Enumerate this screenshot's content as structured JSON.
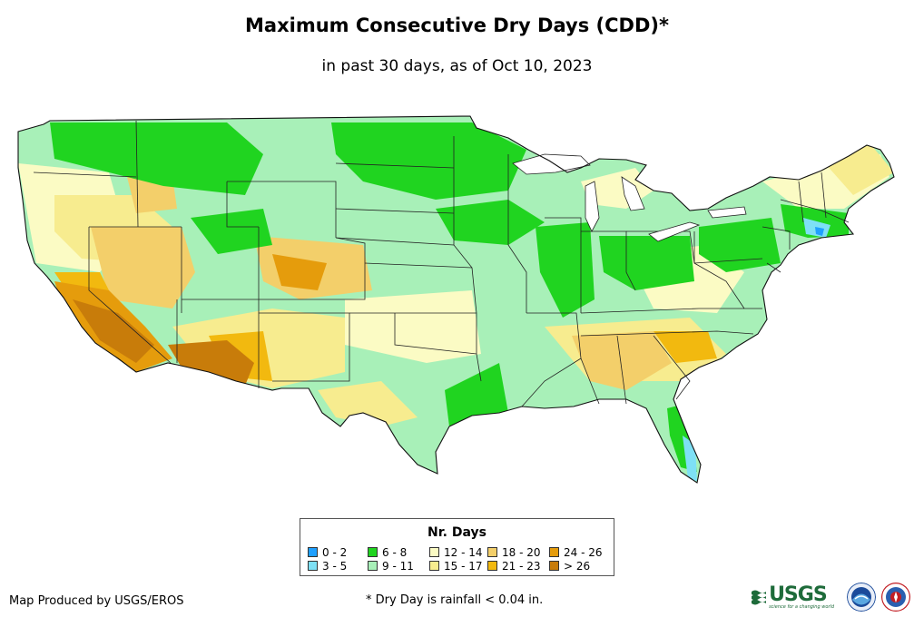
{
  "title": "Maximum Consecutive Dry Days (CDD)*",
  "subtitle": "in past 30 days, as of Oct 10, 2023",
  "legend": {
    "title": "Nr. Days",
    "items": [
      {
        "label": "0 - 2",
        "color": "#1fa0ff"
      },
      {
        "label": "3 - 5",
        "color": "#7ee0f5"
      },
      {
        "label": "6 - 8",
        "color": "#20d420"
      },
      {
        "label": "9 - 11",
        "color": "#a8f0b8"
      },
      {
        "label": "12 - 14",
        "color": "#fbfbc4"
      },
      {
        "label": "15 - 17",
        "color": "#f7ec8f"
      },
      {
        "label": "18 - 20",
        "color": "#f3cf6a"
      },
      {
        "label": "21 - 23",
        "color": "#f2b90f"
      },
      {
        "label": "24 - 26",
        "color": "#e59c0c"
      },
      {
        "label": "> 26",
        "color": "#c87c0a"
      }
    ]
  },
  "credit": "Map Produced by USGS/EROS",
  "footnote": "* Dry Day is rainfall < 0.04 in.",
  "logos": {
    "usgs": "USGS",
    "usgs_tagline": "science for a changing world"
  }
}
